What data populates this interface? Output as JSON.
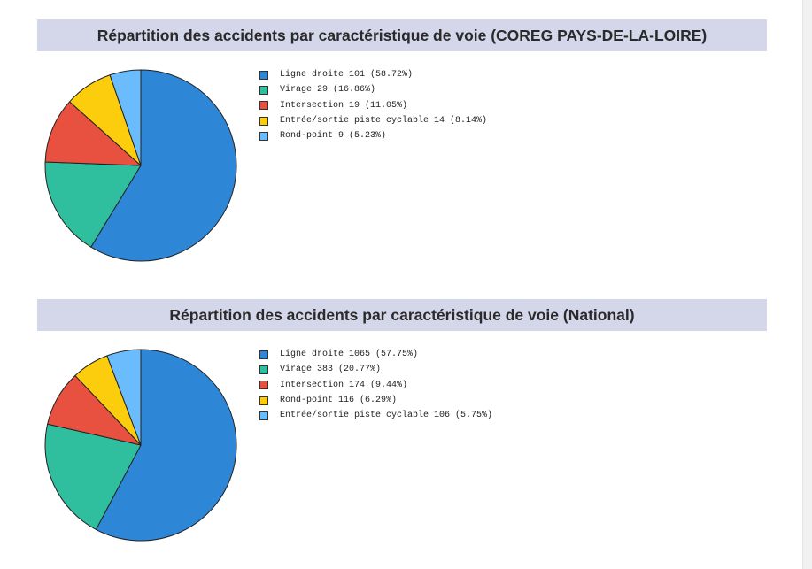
{
  "chart_data": [
    {
      "type": "pie",
      "title": "Répartition des accidents par caractéristique de voie (COREG PAYS-DE-LA-LOIRE)",
      "slices": [
        {
          "label": "Ligne droite 101 (58.72%)",
          "value": 101,
          "color": "#2e86d6"
        },
        {
          "label": "Virage 29 (16.86%)",
          "value": 29,
          "color": "#2fbf9f"
        },
        {
          "label": "Intersection 19 (11.05%)",
          "value": 19,
          "color": "#e8503f"
        },
        {
          "label": "Entrée/sortie piste cyclable 14 (8.14%)",
          "value": 14,
          "color": "#fccd0d"
        },
        {
          "label": "Rond-point 9 (5.23%)",
          "value": 9,
          "color": "#6bbcfd"
        }
      ]
    },
    {
      "type": "pie",
      "title": "Répartition des accidents par caractéristique de voie (National)",
      "slices": [
        {
          "label": "Ligne droite 1065 (57.75%)",
          "value": 1065,
          "color": "#2e86d6"
        },
        {
          "label": "Virage 383 (20.77%)",
          "value": 383,
          "color": "#2fbf9f"
        },
        {
          "label": "Intersection 174 (9.44%)",
          "value": 174,
          "color": "#e8503f"
        },
        {
          "label": "Rond-point 116 (6.29%)",
          "value": 116,
          "color": "#fccd0d"
        },
        {
          "label": "Entrée/sortie piste cyclable 106 (5.75%)",
          "value": 106,
          "color": "#6bbcfd"
        }
      ]
    }
  ]
}
